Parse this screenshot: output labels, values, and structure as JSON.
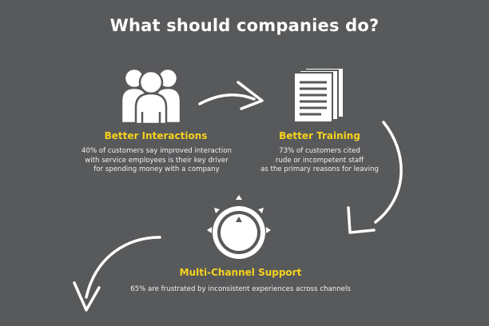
{
  "title": "What should companies do?",
  "items": [
    {
      "heading": "Better Interactions",
      "icon": "people-icon",
      "description": [
        "40% of customers say improved interaction",
        "with service employees is their key driver",
        "for spending money with a company"
      ]
    },
    {
      "heading": "Better Training",
      "icon": "documents-icon",
      "description": [
        "73% of customers cited",
        "rude or incompetent staff",
        "as the primary reasons for leaving"
      ]
    },
    {
      "heading": "Multi-Channel Support",
      "icon": "dial-icon",
      "description": [
        "65% are frustrated by inconsistent experiences across channels"
      ]
    }
  ],
  "colors": {
    "background": "#58595b",
    "accent": "#f6d21c",
    "text": "#ffffff"
  }
}
